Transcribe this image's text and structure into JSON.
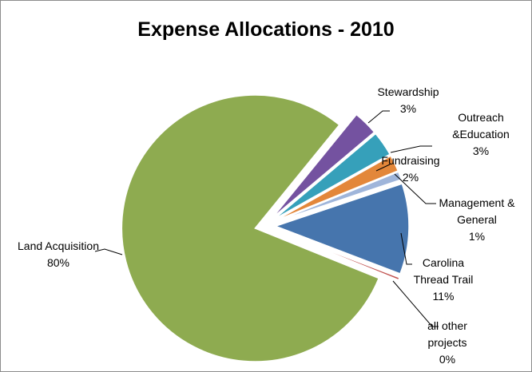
{
  "chart_data": {
    "type": "pie",
    "title": "Expense Allocations - 2010",
    "categories": [
      "Land Acquisition",
      "Stewardship",
      "Outreach &Education",
      "Fundraising",
      "Management & General",
      "Carolina Thread Trail",
      "all other projects"
    ],
    "values": [
      80,
      3,
      3,
      2,
      1,
      11,
      0.3
    ],
    "value_labels": [
      "80%",
      "3%",
      "3%",
      "2%",
      "1%",
      "11%",
      "0%"
    ],
    "colors": [
      "#8eab50",
      "#7452a0",
      "#36a0ba",
      "#e3873a",
      "#9fb5da",
      "#4675ad",
      "#c0504d"
    ]
  }
}
